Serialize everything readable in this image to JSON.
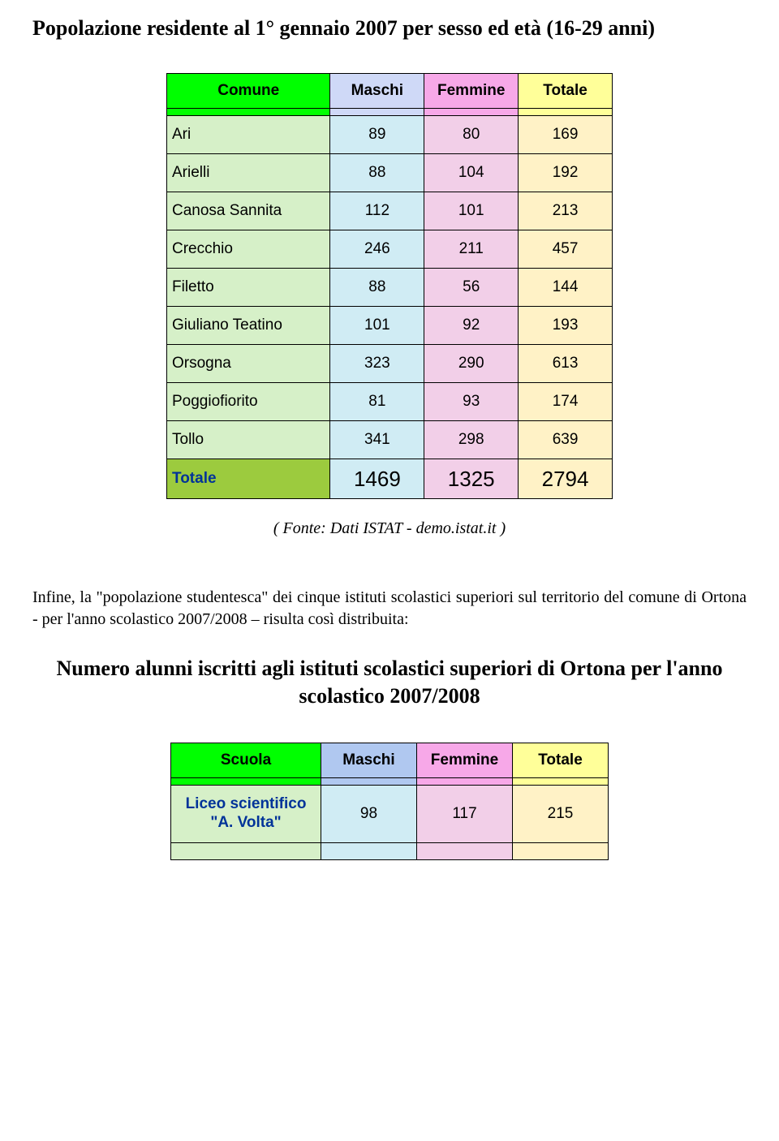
{
  "title": "Popolazione residente al 1° gennaio 2007 per sesso ed età (16-29 anni)",
  "table1": {
    "headers": {
      "c0": "Comune",
      "c1": "Maschi",
      "c2": "Femmine",
      "c3": "Totale"
    },
    "header_bg": [
      "#00ff00",
      "#cfd9f7",
      "#f7a8e8",
      "#ffff99"
    ],
    "rows": [
      {
        "c0": "Ari",
        "c1": "89",
        "c2": "80",
        "c3": "169"
      },
      {
        "c0": "Arielli",
        "c1": "88",
        "c2": "104",
        "c3": "192"
      },
      {
        "c0": "Canosa Sannita",
        "c1": "112",
        "c2": "101",
        "c3": "213"
      },
      {
        "c0": "Crecchio",
        "c1": "246",
        "c2": "211",
        "c3": "457"
      },
      {
        "c0": "Filetto",
        "c1": "88",
        "c2": "56",
        "c3": "144"
      },
      {
        "c0": "Giuliano Teatino",
        "c1": "101",
        "c2": "92",
        "c3": "193"
      },
      {
        "c0": "Orsogna",
        "c1": "323",
        "c2": "290",
        "c3": "613"
      },
      {
        "c0": "Poggiofiorito",
        "c1": "81",
        "c2": "93",
        "c3": "174"
      },
      {
        "c0": "Tollo",
        "c1": "341",
        "c2": "298",
        "c3": "639"
      }
    ],
    "row_bg": [
      "#d6f0c8",
      "#d0ecf4",
      "#f2cfe8",
      "#fff2c6"
    ],
    "total": {
      "c0": "Totale",
      "c1": "1469",
      "c2": "1325",
      "c3": "2794"
    },
    "total_bg": [
      "#9ccb3e",
      "#d0ecf4",
      "#f2cfe8",
      "#fff2c6"
    ],
    "total_label_color": "#003399"
  },
  "caption": "( Fonte: Dati ISTAT - demo.istat.it )",
  "para": "Infine, la \"popolazione studentesca\" dei cinque istituti scolastici superiori sul territorio del comune di Ortona - per l'anno scolastico 2007/2008 – risulta così distribuita:",
  "subtitle": "Numero alunni iscritti agli istituti scolastici superiori di Ortona per l'anno scolastico 2007/2008",
  "table2": {
    "headers": {
      "c0": "Scuola",
      "c1": "Maschi",
      "c2": "Femmine",
      "c3": "Totale"
    },
    "header_bg": [
      "#00ff00",
      "#b0c8f0",
      "#f7a8e8",
      "#ffff99"
    ],
    "rows": [
      {
        "c0": "Liceo scientifico \"A. Volta\"",
        "c1": "98",
        "c2": "117",
        "c3": "215"
      }
    ],
    "row_bg": [
      "#d6f0c8",
      "#d0ecf4",
      "#f2cfe8",
      "#fff2c6"
    ],
    "label_color": "#003399"
  }
}
